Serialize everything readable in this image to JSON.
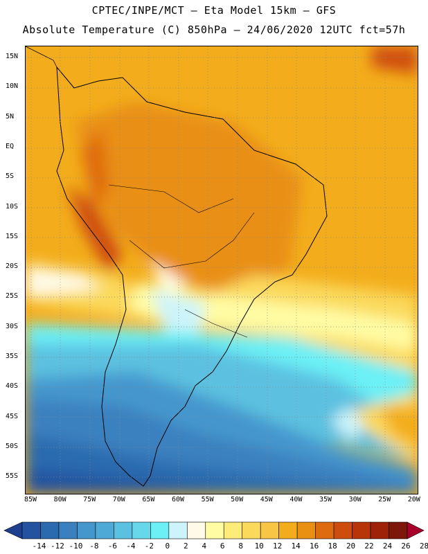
{
  "header": {
    "line1": "CPTEC/INPE/MCT –  Eta Model 15km – GFS",
    "line2": "Absolute Temperature (C) 850hPa – 24/06/2020 12UTC fct=57h"
  },
  "map": {
    "lat_labels": [
      "15N",
      "10N",
      "5N",
      "EQ",
      "5S",
      "10S",
      "15S",
      "20S",
      "25S",
      "30S",
      "35S",
      "40S",
      "45S",
      "50S",
      "55S"
    ],
    "lon_labels": [
      "85W",
      "80W",
      "75W",
      "70W",
      "65W",
      "60W",
      "55W",
      "50W",
      "45W",
      "40W",
      "35W",
      "30W",
      "25W",
      "20W"
    ],
    "lat_range": [
      -58,
      16
    ],
    "lon_range": [
      -86,
      -19
    ],
    "grid": "dotted"
  },
  "colorbar": {
    "labels": [
      "-14",
      "-12",
      "-10",
      "-8",
      "-6",
      "-4",
      "-2",
      "0",
      "2",
      "4",
      "6",
      "8",
      "10",
      "12",
      "14",
      "16",
      "18",
      "20",
      "22",
      "24",
      "26",
      "28"
    ],
    "colors": [
      "#1e3f8e",
      "#2353a0",
      "#2c6aaf",
      "#3a80bf",
      "#4596cd",
      "#4fa9d6",
      "#5bc1e0",
      "#66d8ea",
      "#6cf0f6",
      "#cdf4fa",
      "#fffbe8",
      "#fffca4",
      "#fdeb7a",
      "#fbd95c",
      "#f8c544",
      "#f3ad1c",
      "#e98f14",
      "#df6b10",
      "#cf4d0c",
      "#b83509",
      "#9e2207",
      "#7d160b",
      "#a8002a"
    ]
  }
}
